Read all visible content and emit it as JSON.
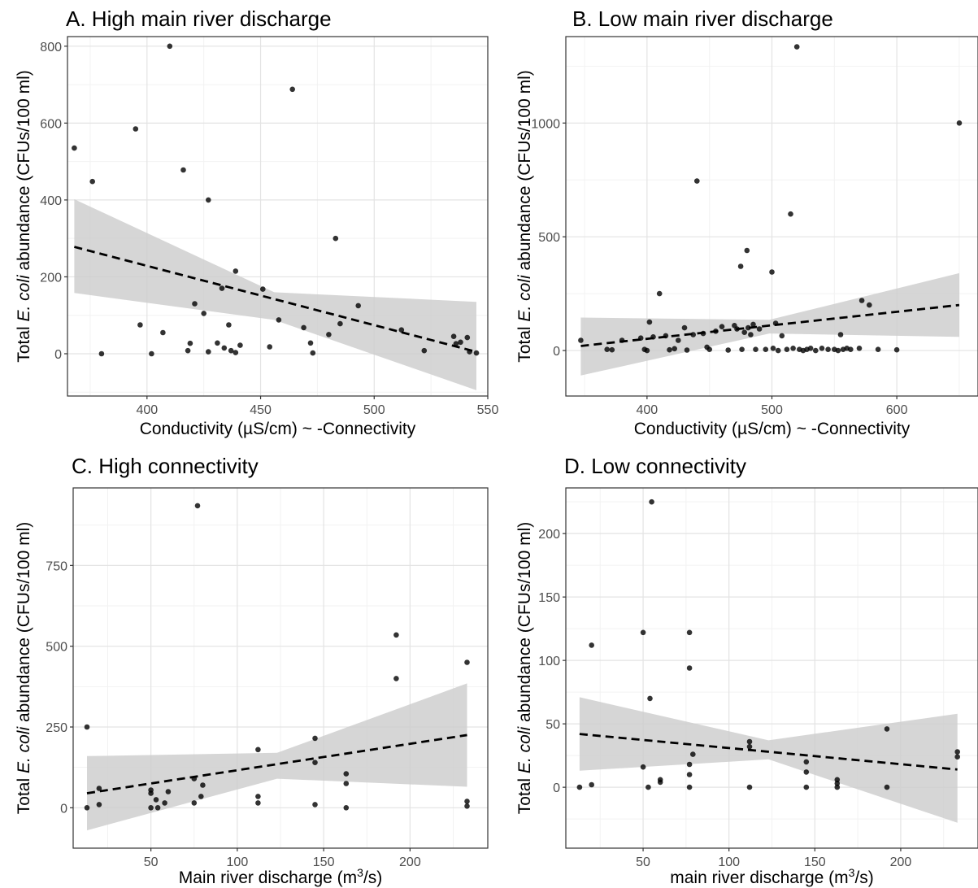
{
  "chart_data": [
    {
      "type": "scatter",
      "title": "A. High main river discharge",
      "xlabel": "Conductivity (µS/cm)  ~  -Connectivity",
      "ylabel": {
        "pre": "Total ",
        "italic": "E. coli",
        "post": " abundance (CFUs/100 ml)"
      },
      "xlim": [
        365,
        550
      ],
      "ylim": [
        -110,
        825
      ],
      "xticks": [
        400,
        450,
        500,
        550
      ],
      "yticks": [
        0,
        200,
        400,
        600,
        800
      ],
      "grid": true,
      "points": [
        [
          368,
          535
        ],
        [
          376,
          448
        ],
        [
          380,
          0
        ],
        [
          395,
          585
        ],
        [
          397,
          75
        ],
        [
          402,
          0
        ],
        [
          407,
          55
        ],
        [
          410,
          800
        ],
        [
          416,
          478
        ],
        [
          418,
          8
        ],
        [
          419,
          27
        ],
        [
          421,
          130
        ],
        [
          425,
          105
        ],
        [
          427,
          400
        ],
        [
          427,
          5
        ],
        [
          431,
          28
        ],
        [
          433,
          170
        ],
        [
          434,
          15
        ],
        [
          436,
          75
        ],
        [
          437,
          8
        ],
        [
          439,
          215
        ],
        [
          439,
          3
        ],
        [
          441,
          22
        ],
        [
          451,
          168
        ],
        [
          454,
          18
        ],
        [
          458,
          88
        ],
        [
          464,
          688
        ],
        [
          469,
          68
        ],
        [
          472,
          28
        ],
        [
          473,
          2
        ],
        [
          480,
          50
        ],
        [
          483,
          300
        ],
        [
          485,
          78
        ],
        [
          493,
          125
        ],
        [
          512,
          62
        ],
        [
          522,
          8
        ],
        [
          535,
          45
        ],
        [
          536,
          26
        ],
        [
          538,
          30
        ],
        [
          541,
          42
        ],
        [
          542,
          5
        ],
        [
          545,
          2
        ]
      ],
      "trend": {
        "x": [
          368,
          545
        ],
        "y": [
          278,
          5
        ]
      },
      "band": {
        "x": [
          368,
          456,
          545
        ],
        "lower": [
          158,
          88,
          -95
        ],
        "upper": [
          402,
          160,
          135
        ]
      }
    },
    {
      "type": "scatter",
      "title": "B. Low main river discharge",
      "xlabel": "Conductivity (µS/cm)  ~  -Connectivity",
      "ylabel": {
        "pre": "Total ",
        "italic": "E. coli",
        "post": " abundance (CFUs/100 ml)"
      },
      "xlim": [
        335,
        665
      ],
      "ylim": [
        -200,
        1380
      ],
      "xticks": [
        400,
        500,
        600
      ],
      "yticks": [
        0,
        500,
        1000
      ],
      "grid": true,
      "points": [
        [
          347,
          45
        ],
        [
          368,
          5
        ],
        [
          372,
          3
        ],
        [
          380,
          45
        ],
        [
          395,
          55
        ],
        [
          398,
          5
        ],
        [
          400,
          0
        ],
        [
          402,
          125
        ],
        [
          405,
          60
        ],
        [
          410,
          250
        ],
        [
          415,
          65
        ],
        [
          418,
          3
        ],
        [
          422,
          8
        ],
        [
          425,
          45
        ],
        [
          430,
          100
        ],
        [
          432,
          2
        ],
        [
          437,
          70
        ],
        [
          440,
          745
        ],
        [
          445,
          75
        ],
        [
          448,
          15
        ],
        [
          450,
          5
        ],
        [
          455,
          85
        ],
        [
          460,
          105
        ],
        [
          465,
          2
        ],
        [
          470,
          110
        ],
        [
          472,
          95
        ],
        [
          475,
          370
        ],
        [
          476,
          5
        ],
        [
          478,
          80
        ],
        [
          480,
          440
        ],
        [
          481,
          100
        ],
        [
          483,
          70
        ],
        [
          485,
          115
        ],
        [
          487,
          5
        ],
        [
          490,
          95
        ],
        [
          495,
          5
        ],
        [
          500,
          345
        ],
        [
          501,
          10
        ],
        [
          503,
          120
        ],
        [
          505,
          0
        ],
        [
          508,
          65
        ],
        [
          512,
          5
        ],
        [
          515,
          600
        ],
        [
          517,
          10
        ],
        [
          520,
          1335
        ],
        [
          522,
          5
        ],
        [
          525,
          0
        ],
        [
          528,
          5
        ],
        [
          531,
          10
        ],
        [
          535,
          0
        ],
        [
          540,
          10
        ],
        [
          545,
          5
        ],
        [
          550,
          5
        ],
        [
          553,
          0
        ],
        [
          555,
          70
        ],
        [
          557,
          5
        ],
        [
          560,
          10
        ],
        [
          563,
          5
        ],
        [
          570,
          10
        ],
        [
          572,
          220
        ],
        [
          578,
          200
        ],
        [
          585,
          5
        ],
        [
          600,
          3
        ],
        [
          650,
          1000
        ]
      ],
      "trend": {
        "x": [
          347,
          650
        ],
        "y": [
          20,
          200
        ]
      },
      "band": {
        "x": [
          347,
          498,
          650
        ],
        "lower": [
          -110,
          75,
          60
        ],
        "upper": [
          145,
          135,
          340
        ]
      }
    },
    {
      "type": "scatter",
      "title": "C. High connectivity",
      "xlabel": {
        "main": "Main river discharge (m",
        "sup": "3",
        "post": "/s)"
      },
      "ylabel": {
        "pre": "Total ",
        "italic": "E. coli",
        "post": " abundance (CFUs/100 ml)"
      },
      "xlim": [
        5,
        245
      ],
      "ylim": [
        -125,
        990
      ],
      "xticks": [
        50,
        100,
        150,
        200
      ],
      "yticks": [
        0,
        250,
        500,
        750
      ],
      "grid": true,
      "points": [
        [
          13,
          0
        ],
        [
          13,
          250
        ],
        [
          20,
          60
        ],
        [
          20,
          10
        ],
        [
          50,
          55
        ],
        [
          50,
          45
        ],
        [
          50,
          0
        ],
        [
          53,
          25
        ],
        [
          54,
          0
        ],
        [
          58,
          15
        ],
        [
          60,
          50
        ],
        [
          75,
          90
        ],
        [
          75,
          15
        ],
        [
          77,
          935
        ],
        [
          79,
          35
        ],
        [
          80,
          70
        ],
        [
          112,
          180
        ],
        [
          112,
          35
        ],
        [
          112,
          15
        ],
        [
          145,
          215
        ],
        [
          145,
          140
        ],
        [
          145,
          10
        ],
        [
          163,
          105
        ],
        [
          163,
          75
        ],
        [
          163,
          0
        ],
        [
          192,
          535
        ],
        [
          192,
          400
        ],
        [
          233,
          450
        ],
        [
          233,
          20
        ],
        [
          233,
          5
        ]
      ],
      "trend": {
        "x": [
          13,
          233
        ],
        "y": [
          45,
          225
        ]
      },
      "band": {
        "x": [
          13,
          123,
          233
        ],
        "lower": [
          -70,
          90,
          65
        ],
        "upper": [
          160,
          170,
          385
        ]
      }
    },
    {
      "type": "scatter",
      "title": "D. Low connectivity",
      "xlabel": {
        "main": "main river discharge (m",
        "sup": "3",
        "post": "/s)"
      },
      "ylabel": {
        "pre": "Total ",
        "italic": "E. coli",
        "post": " abundance (CFUs/100 ml)"
      },
      "xlim": [
        5,
        245
      ],
      "ylim": [
        -48,
        236
      ],
      "xticks": [
        50,
        100,
        150,
        200
      ],
      "yticks": [
        0,
        50,
        100,
        150,
        200
      ],
      "grid": true,
      "points": [
        [
          13,
          0
        ],
        [
          20,
          2
        ],
        [
          20,
          112
        ],
        [
          50,
          122
        ],
        [
          50,
          16
        ],
        [
          53,
          0
        ],
        [
          54,
          70
        ],
        [
          55,
          225
        ],
        [
          60,
          6
        ],
        [
          60,
          4
        ],
        [
          77,
          122
        ],
        [
          77,
          94
        ],
        [
          77,
          18
        ],
        [
          77,
          10
        ],
        [
          77,
          0
        ],
        [
          79,
          26
        ],
        [
          112,
          36
        ],
        [
          112,
          32
        ],
        [
          112,
          0
        ],
        [
          145,
          20
        ],
        [
          145,
          12
        ],
        [
          145,
          0
        ],
        [
          163,
          6
        ],
        [
          163,
          3
        ],
        [
          163,
          0
        ],
        [
          192,
          46
        ],
        [
          192,
          0
        ],
        [
          233,
          28
        ],
        [
          233,
          24
        ]
      ],
      "trend": {
        "x": [
          13,
          233
        ],
        "y": [
          42,
          14
        ]
      },
      "band": {
        "x": [
          13,
          123,
          233
        ],
        "lower": [
          13,
          22,
          -28
        ],
        "upper": [
          71,
          37,
          58
        ]
      }
    }
  ]
}
